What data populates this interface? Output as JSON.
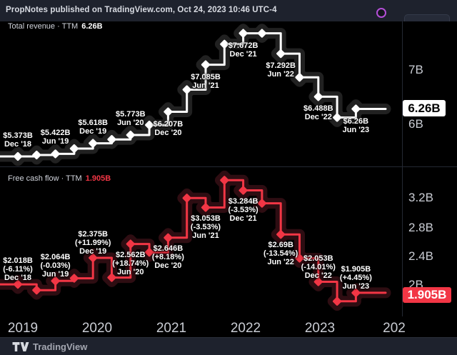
{
  "header": {
    "published_text": "PropNotes published on TradingView.com, Oct 24, 2023 10:46 UTC-4"
  },
  "footer": {
    "brand": "TradingView"
  },
  "panels": [
    {
      "legend": {
        "label": "Total revenue · TTM",
        "value": "6.26B"
      },
      "scale": {
        "ticks": [
          "7B",
          "6B"
        ],
        "price_box": "6.26B"
      }
    },
    {
      "legend": {
        "label": "Free cash flow · TTM",
        "value": "1.905B"
      },
      "scale": {
        "ticks": [
          "3.2B",
          "2.8B",
          "2.4B",
          "2B"
        ],
        "price_box": "1.905B"
      }
    }
  ],
  "time_axis": [
    "2019",
    "2020",
    "2021",
    "2022",
    "2023",
    "202"
  ],
  "colors": {
    "background": "#000000",
    "bar_background": "#1e222d",
    "revenue_line": "#ffffff",
    "fcf_line": "#f23645",
    "purple_badge": "#b44fd8"
  },
  "chart_data": [
    {
      "type": "line",
      "style": "step-line-with-diamond-markers",
      "name": "Total revenue TTM (billions USD)",
      "color": "#ffffff",
      "x": [
        "Dec '18",
        "Mar '19",
        "Jun '19",
        "Sep '19",
        "Dec '19",
        "Mar '20",
        "Jun '20",
        "Sep '20",
        "Dec '20",
        "Mar '21",
        "Jun '21",
        "Sep '21",
        "Dec '21",
        "Mar '22",
        "Jun '22",
        "Sep '22",
        "Dec '22",
        "Mar '23",
        "Jun '23"
      ],
      "values": [
        5.373,
        5.4,
        5.422,
        5.52,
        5.618,
        5.69,
        5.773,
        5.96,
        6.207,
        6.62,
        7.085,
        7.47,
        7.672,
        7.672,
        7.292,
        6.85,
        6.488,
        6.1,
        6.26
      ],
      "current": "6.26B",
      "axis_ticks": [
        7,
        6
      ],
      "legend_position": "top-left",
      "grid": false,
      "labels": [
        {
          "i": 0,
          "price": "$5.373B",
          "date": "Dec '18",
          "pos": "above"
        },
        {
          "i": 2,
          "price": "$5.422B",
          "date": "Jun '19",
          "pos": "above"
        },
        {
          "i": 4,
          "price": "$5.618B",
          "date": "Dec '19",
          "pos": "above"
        },
        {
          "i": 6,
          "price": "$5.773B",
          "date": "Jun '20",
          "pos": "above"
        },
        {
          "i": 8,
          "price": "$6.207B",
          "date": "Dec '20",
          "pos": "below"
        },
        {
          "i": 10,
          "price": "$7.085B",
          "date": "Jun '21",
          "pos": "below"
        },
        {
          "i": 12,
          "price": "$7.672B",
          "date": "Dec '21",
          "pos": "below"
        },
        {
          "i": 14,
          "price": "$7.292B",
          "date": "Jun '22",
          "pos": "below"
        },
        {
          "i": 16,
          "price": "$6.488B",
          "date": "Dec '22",
          "pos": "below"
        },
        {
          "i": 18,
          "price": "$6.26B",
          "date": "Jun '23",
          "pos": "below"
        }
      ]
    },
    {
      "type": "line",
      "style": "step-line-with-diamond-markers",
      "name": "Free cash flow TTM (billions USD)",
      "color": "#f23645",
      "x": [
        "Dec '18",
        "Mar '19",
        "Jun '19",
        "Sep '19",
        "Dec '19",
        "Mar '20",
        "Jun '20",
        "Sep '20",
        "Dec '20",
        "Mar '21",
        "Jun '21",
        "Sep '21",
        "Dec '21",
        "Mar '22",
        "Jun '22",
        "Sep '22",
        "Dec '22",
        "Mar '23",
        "Jun '23"
      ],
      "values": [
        2.018,
        1.94,
        2.064,
        2.1,
        2.375,
        2.11,
        2.562,
        2.45,
        2.646,
        3.18,
        3.053,
        3.42,
        3.284,
        3.11,
        2.69,
        2.37,
        2.053,
        1.79,
        1.905
      ],
      "current": "1.905B",
      "axis_ticks": [
        3.2,
        2.8,
        2.4,
        2.0
      ],
      "legend_position": "top-left",
      "grid": false,
      "labels": [
        {
          "i": 0,
          "price": "$2.018B",
          "pct": "(-6.11%)",
          "date": "Dec '18",
          "pos": "above"
        },
        {
          "i": 2,
          "price": "$2.064B",
          "pct": "(-0.03%)",
          "date": "Jun '19",
          "pos": "above"
        },
        {
          "i": 4,
          "price": "$2.375B",
          "pct": "(+11.99%)",
          "date": "Dec '19",
          "pos": "above"
        },
        {
          "i": 6,
          "price": "$2.562B",
          "pct": "(+18.74%)",
          "date": "Jun '20",
          "pos": "below"
        },
        {
          "i": 8,
          "price": "$2.646B",
          "pct": "(+8.18%)",
          "date": "Dec '20",
          "pos": "below"
        },
        {
          "i": 10,
          "price": "$3.053B",
          "pct": "(-3.53%)",
          "date": "Jun '21",
          "pos": "below"
        },
        {
          "i": 12,
          "price": "$3.284B",
          "pct": "(-3.53%)",
          "date": "Dec '21",
          "pos": "below"
        },
        {
          "i": 14,
          "price": "$2.69B",
          "pct": "(-13.54%)",
          "date": "Jun '22",
          "pos": "below"
        },
        {
          "i": 16,
          "price": "$2.053B",
          "pct": "(-14.01%)",
          "date": "Dec '22",
          "pos": "above"
        },
        {
          "i": 18,
          "price": "$1.905B",
          "pct": "(+4.45%)",
          "date": "Jun '23",
          "pos": "above"
        }
      ]
    }
  ]
}
